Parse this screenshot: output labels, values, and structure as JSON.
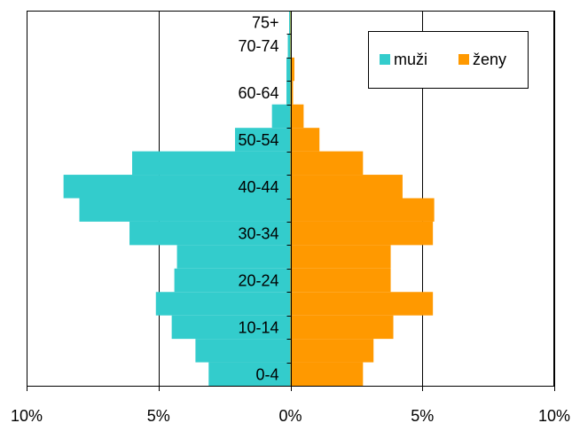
{
  "chart_data": {
    "type": "bar",
    "orientation": "horizontal",
    "chart_kind": "population pyramid",
    "categories": [
      "0-4",
      "5-9",
      "10-14",
      "15-19",
      "20-24",
      "25-29",
      "30-34",
      "35-39",
      "40-44",
      "45-49",
      "50-54",
      "55-59",
      "60-64",
      "65-69",
      "70-74",
      "75+"
    ],
    "category_labels_shown": [
      "0-4",
      "10-14",
      "20-24",
      "30-34",
      "40-44",
      "50-54",
      "60-64",
      "70-74",
      "75+"
    ],
    "series": [
      {
        "name": "muži",
        "side": "left",
        "color": "#33CCCC",
        "values": [
          3.1,
          3.6,
          4.5,
          5.1,
          4.4,
          4.3,
          6.1,
          8.0,
          8.6,
          6.0,
          2.1,
          0.7,
          0.15,
          0.15,
          0.1,
          0.05
        ]
      },
      {
        "name": "ženy",
        "side": "right",
        "color": "#FF9900",
        "values": [
          2.75,
          3.15,
          3.9,
          5.4,
          3.8,
          3.8,
          5.4,
          5.45,
          4.25,
          2.75,
          1.1,
          0.5,
          0.1,
          0.15,
          0.05,
          0.05
        ]
      }
    ],
    "xlim": [
      -10,
      10
    ],
    "x_ticks": [
      {
        "value": -10,
        "label": "10%"
      },
      {
        "value": -5,
        "label": "5%"
      },
      {
        "value": 0,
        "label": "0%"
      },
      {
        "value": 5,
        "label": "5%"
      },
      {
        "value": 10,
        "label": "10%"
      }
    ],
    "title": "",
    "xlabel": "",
    "ylabel": "",
    "grid": "vertical",
    "legend_position": "top-right"
  }
}
